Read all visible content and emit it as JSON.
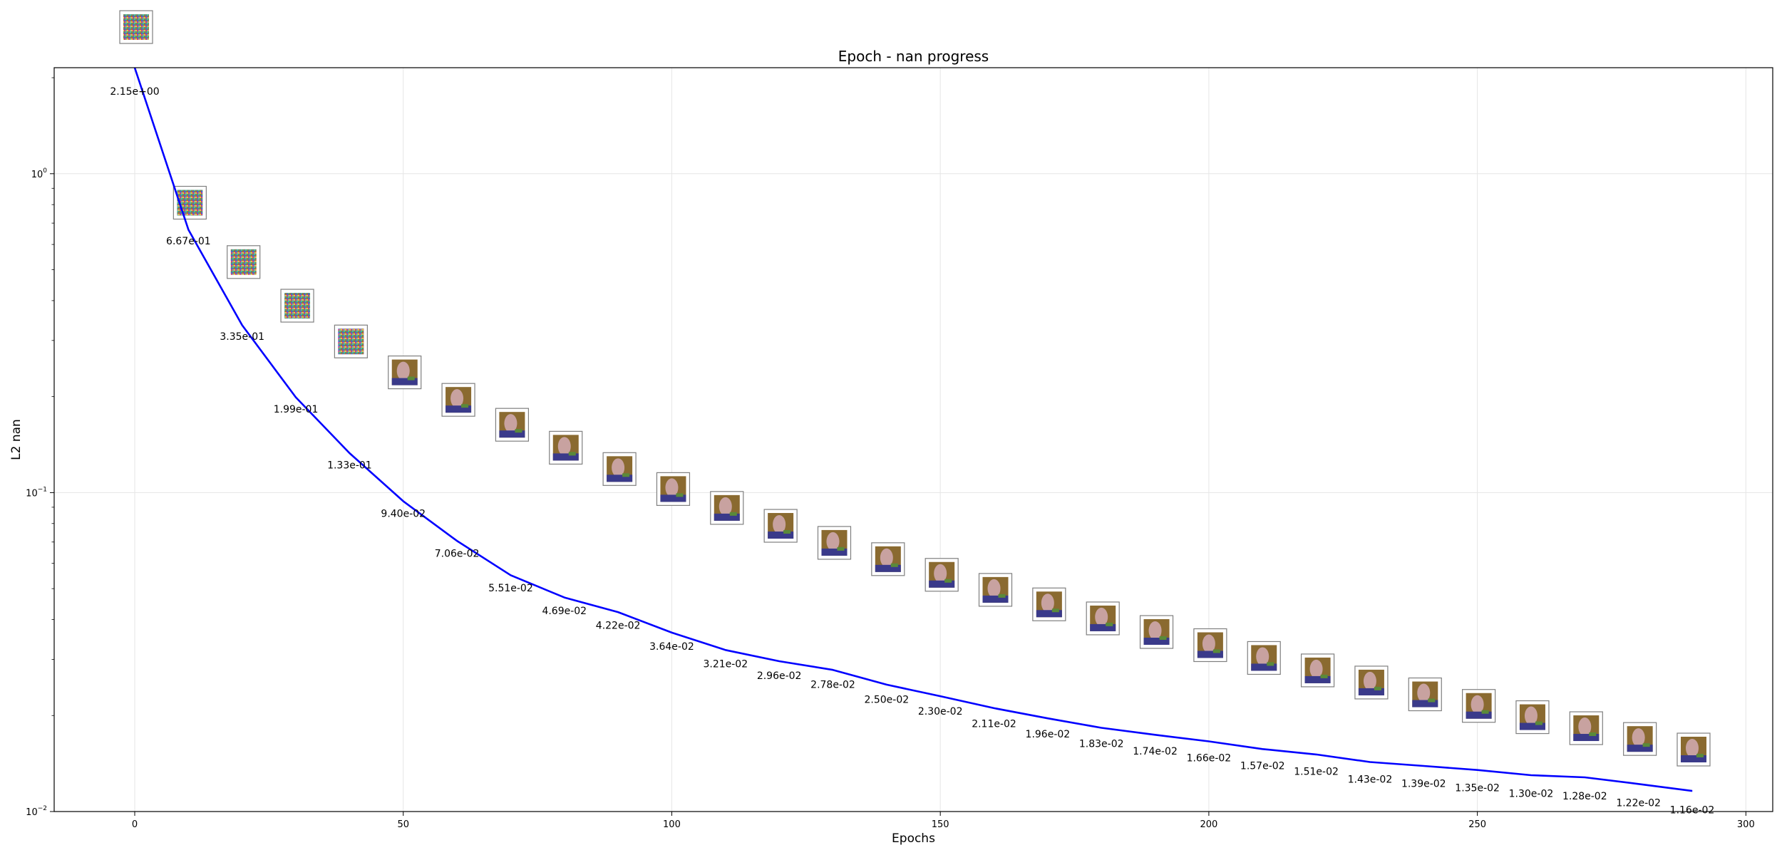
{
  "chart_data": {
    "type": "line",
    "title": "Epoch - nan progress",
    "xlabel": "Epochs",
    "ylabel": "L2 nan",
    "y_scale": "log",
    "xlim": [
      -15,
      305
    ],
    "ylim": [
      0.01,
      2.15
    ],
    "grid": true,
    "x_ticks": [
      0,
      50,
      100,
      150,
      200,
      250,
      300
    ],
    "y_ticks": [
      {
        "value": 1,
        "base": "10",
        "exp": "0"
      },
      {
        "value": 0.1,
        "base": "10",
        "exp": "−1"
      },
      {
        "value": 0.01,
        "base": "10",
        "exp": "−2"
      }
    ],
    "line_color": "#0000ff",
    "series": [
      {
        "x": [
          0,
          10,
          20,
          30,
          40,
          50,
          60,
          70,
          80,
          90,
          100,
          110,
          120,
          130,
          140,
          150,
          160,
          170,
          180,
          190,
          200,
          210,
          220,
          230,
          240,
          250,
          260,
          270,
          280,
          290
        ],
        "values": [
          2.15,
          0.667,
          0.335,
          0.199,
          0.133,
          0.094,
          0.0706,
          0.0551,
          0.0469,
          0.0422,
          0.0364,
          0.0321,
          0.0296,
          0.0278,
          0.025,
          0.023,
          0.0211,
          0.0196,
          0.0183,
          0.0174,
          0.0166,
          0.0157,
          0.0151,
          0.0143,
          0.0139,
          0.0135,
          0.013,
          0.0128,
          0.0122,
          0.0116
        ],
        "labels": [
          "2.15e+00",
          "6.67e-01",
          "3.35e-01",
          "1.99e-01",
          "1.33e-01",
          "9.40e-02",
          "7.06e-02",
          "5.51e-02",
          "4.69e-02",
          "4.22e-02",
          "3.64e-02",
          "3.21e-02",
          "2.96e-02",
          "2.78e-02",
          "2.50e-02",
          "2.30e-02",
          "2.11e-02",
          "1.96e-02",
          "1.83e-02",
          "1.74e-02",
          "1.66e-02",
          "1.57e-02",
          "1.51e-02",
          "1.43e-02",
          "1.39e-02",
          "1.35e-02",
          "1.30e-02",
          "1.28e-02",
          "1.22e-02",
          "1.16e-02"
        ]
      }
    ]
  }
}
